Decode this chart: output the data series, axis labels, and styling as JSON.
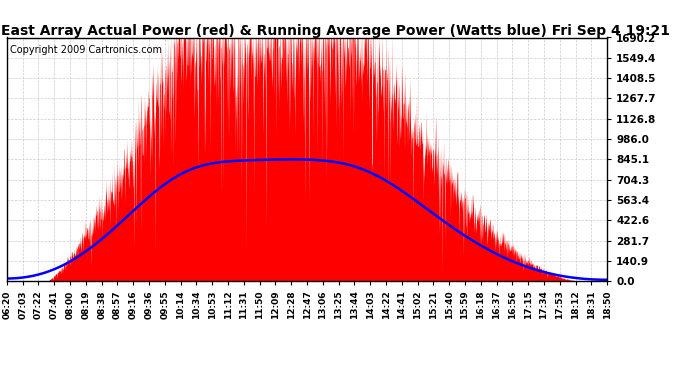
{
  "title": "East Array Actual Power (red) & Running Average Power (Watts blue) Fri Sep 4 19:21",
  "copyright": "Copyright 2009 Cartronics.com",
  "ymax": 1690.2,
  "yticks": [
    0.0,
    140.9,
    281.7,
    422.6,
    563.4,
    704.3,
    845.1,
    986.0,
    1126.8,
    1267.7,
    1408.5,
    1549.4,
    1690.2
  ],
  "x_labels": [
    "06:20",
    "07:03",
    "07:22",
    "07:41",
    "08:00",
    "08:19",
    "08:38",
    "08:57",
    "09:16",
    "09:36",
    "09:55",
    "10:14",
    "10:34",
    "10:53",
    "11:12",
    "11:31",
    "11:50",
    "12:09",
    "12:28",
    "12:47",
    "13:06",
    "13:25",
    "13:44",
    "14:03",
    "14:22",
    "14:41",
    "15:02",
    "15:21",
    "15:40",
    "15:59",
    "16:18",
    "16:37",
    "16:56",
    "17:15",
    "17:34",
    "17:53",
    "18:12",
    "18:31",
    "18:50"
  ],
  "background_color": "#ffffff",
  "fill_color": "#ff0000",
  "line_color": "#0000ff",
  "grid_color": "#cccccc",
  "title_fontsize": 10,
  "copyright_fontsize": 7
}
